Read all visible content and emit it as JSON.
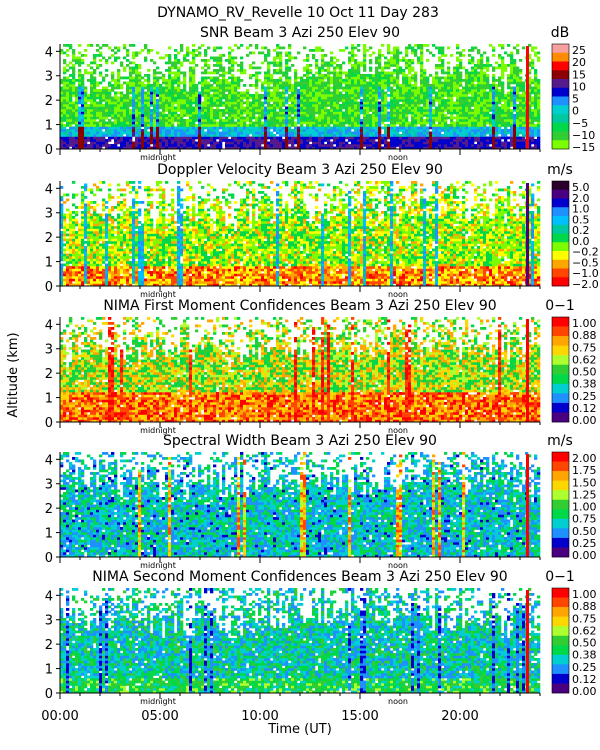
{
  "header": {
    "title": "DYNAMO_RV_Revelle  10 Oct 11 Day 283"
  },
  "chart_data": {
    "type": "heatmap",
    "shared": {
      "xlabel": "Time (UT)",
      "ylabel": "Altitude (km)",
      "xlim": [
        0,
        24
      ],
      "ylim": [
        0,
        4.3
      ],
      "xticks": [
        "00:00",
        "05:00",
        "10:00",
        "15:00",
        "20:00"
      ],
      "xtick_values": [
        0,
        5,
        10,
        15,
        20
      ],
      "yticks": [
        "0",
        "1",
        "2",
        "3",
        "4"
      ],
      "ytick_values": [
        0,
        1,
        2,
        3,
        4
      ],
      "annotations": [
        {
          "text": "midnight",
          "x": 4.9
        },
        {
          "text": "noon",
          "x": 16.9
        }
      ]
    },
    "panels": [
      {
        "title": "SNR Beam 3 Azi 250 Elev 90",
        "unit": "dB",
        "colorbar_labels": [
          "25",
          "20",
          "15",
          "10",
          "5",
          "0",
          "−5",
          "−10",
          "−15"
        ],
        "colorbar_colors": [
          "#f7a0a0",
          "#ff8c00",
          "#ff0000",
          "#8b0000",
          "#551a8b",
          "#0000cd",
          "#1e90ff",
          "#00ced1",
          "#00c8a0",
          "#00d84a",
          "#32cd32",
          "#7cfc00"
        ]
      },
      {
        "title": "Doppler Velocity Beam 3 Azi 250 Elev 90",
        "unit": "m/s",
        "colorbar_labels": [
          "5.0",
          "2.0",
          "1.0",
          "0.5",
          "0.2",
          "0.0",
          "−0.2",
          "−0.5",
          "−1.0",
          "−2.0"
        ],
        "colorbar_colors": [
          "#2a002a",
          "#4b0082",
          "#0000cd",
          "#1e90ff",
          "#00bfff",
          "#00c8a0",
          "#00d84a",
          "#7cfc00",
          "#ffff00",
          "#ffa500",
          "#ff4500",
          "#ff0000"
        ]
      },
      {
        "title": "NIMA First Moment Confidences Beam 3 Azi 250 Elev 90",
        "unit": "0−1",
        "colorbar_labels": [
          "1.00",
          "0.88",
          "0.75",
          "0.62",
          "0.50",
          "0.38",
          "0.25",
          "0.12",
          "0.00"
        ],
        "colorbar_colors": [
          "#ff0000",
          "#ff4500",
          "#ffa500",
          "#ffd700",
          "#adff2f",
          "#32cd32",
          "#00d84a",
          "#00ced1",
          "#1e90ff",
          "#0000cd",
          "#4b0082"
        ]
      },
      {
        "title": "Spectral Width Beam 3 Azi 250 Elev 90",
        "unit": "m/s",
        "colorbar_labels": [
          "2.00",
          "1.75",
          "1.50",
          "1.25",
          "1.00",
          "0.75",
          "0.50",
          "0.25",
          "0.00"
        ],
        "colorbar_colors": [
          "#ff0000",
          "#ff4500",
          "#ffa500",
          "#ffd700",
          "#adff2f",
          "#32cd32",
          "#00d84a",
          "#00ced1",
          "#1e90ff",
          "#0000cd",
          "#4b0082"
        ]
      },
      {
        "title": "NIMA Second Moment Confidences Beam 3 Azi 250 Elev 90",
        "unit": "0−1",
        "colorbar_labels": [
          "1.00",
          "0.88",
          "0.75",
          "0.62",
          "0.50",
          "0.38",
          "0.25",
          "0.12",
          "0.00"
        ],
        "colorbar_colors": [
          "#ff0000",
          "#ff4500",
          "#ffa500",
          "#ffd700",
          "#adff2f",
          "#32cd32",
          "#00d84a",
          "#00ced1",
          "#1e90ff",
          "#0000cd",
          "#4b0082"
        ]
      }
    ]
  }
}
